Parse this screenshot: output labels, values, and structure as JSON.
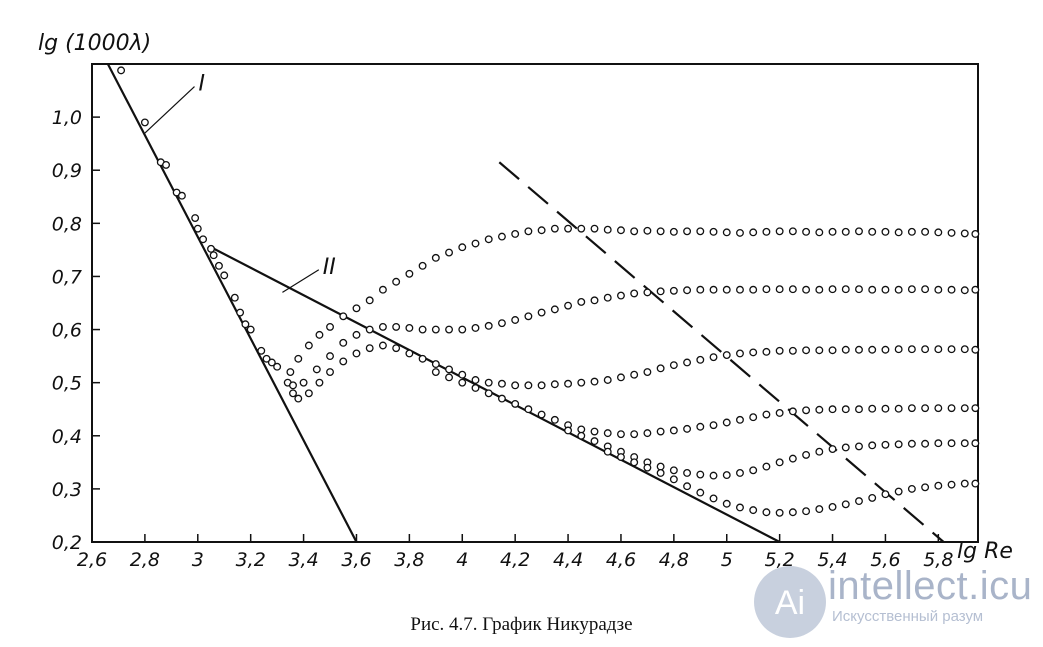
{
  "caption": "Рис. 4.7. График Никурадзе",
  "watermark": {
    "brand": "intellect.icu",
    "tagline": "Искусственный разум",
    "logo_glyph": "Ai",
    "color": "#a9b4c9"
  },
  "chart_data": {
    "type": "scatter",
    "title": "",
    "xlabel": "lg Re",
    "ylabel": "lg (1000λ)",
    "xlim": [
      2.6,
      5.95
    ],
    "ylim": [
      0.2,
      1.1
    ],
    "x_ticks": [
      2.6,
      2.8,
      3,
      3.2,
      3.4,
      3.6,
      3.8,
      4,
      4.2,
      4.4,
      4.6,
      4.8,
      5,
      5.2,
      5.4,
      5.6,
      5.8
    ],
    "x_tick_labels": [
      "2,6",
      "2,8",
      "3",
      "3,2",
      "3,4",
      "3,6",
      "3,8",
      "4",
      "4,2",
      "4,4",
      "4,6",
      "4,8",
      "5",
      "5,2",
      "5,4",
      "5,6",
      "5,8"
    ],
    "y_ticks": [
      0.2,
      0.3,
      0.4,
      0.5,
      0.6,
      0.7,
      0.8,
      0.9,
      1.0
    ],
    "y_tick_labels": [
      "0,2",
      "0,3",
      "0,4",
      "0,5",
      "0,6",
      "0,7",
      "0,8",
      "0,9",
      "1,0"
    ],
    "grid": false,
    "lines": [
      {
        "name": "I",
        "style": "solid",
        "points": [
          [
            2.66,
            1.1
          ],
          [
            3.6,
            0.2
          ]
        ],
        "label_at": [
          2.98,
          1.05
        ]
      },
      {
        "name": "II",
        "style": "solid",
        "points": [
          [
            3.05,
            0.755
          ],
          [
            5.2,
            0.2
          ]
        ],
        "label_at": [
          3.45,
          0.705
        ]
      },
      {
        "name": "",
        "style": "dashed",
        "points": [
          [
            4.14,
            0.915
          ],
          [
            5.82,
            0.2
          ]
        ]
      }
    ],
    "series": [
      {
        "values": [
          [
            2.71,
            1.088
          ],
          [
            2.8,
            0.99
          ],
          [
            2.86,
            0.915
          ],
          [
            2.88,
            0.91
          ],
          [
            2.92,
            0.858
          ],
          [
            2.94,
            0.852
          ],
          [
            2.99,
            0.81
          ],
          [
            3.0,
            0.79
          ],
          [
            3.02,
            0.77
          ],
          [
            3.05,
            0.752
          ],
          [
            3.06,
            0.74
          ],
          [
            3.08,
            0.72
          ],
          [
            3.1,
            0.702
          ],
          [
            3.14,
            0.66
          ],
          [
            3.16,
            0.632
          ],
          [
            3.18,
            0.61
          ],
          [
            3.2,
            0.6
          ],
          [
            3.24,
            0.56
          ],
          [
            3.26,
            0.545
          ],
          [
            3.28,
            0.538
          ],
          [
            3.3,
            0.53
          ],
          [
            3.34,
            0.5
          ],
          [
            3.36,
            0.495
          ]
        ]
      },
      {
        "values": [
          [
            3.35,
            0.52
          ],
          [
            3.38,
            0.545
          ],
          [
            3.42,
            0.57
          ],
          [
            3.46,
            0.59
          ],
          [
            3.5,
            0.605
          ],
          [
            3.55,
            0.625
          ],
          [
            3.6,
            0.64
          ],
          [
            3.65,
            0.655
          ],
          [
            3.7,
            0.675
          ],
          [
            3.75,
            0.69
          ],
          [
            3.8,
            0.705
          ],
          [
            3.85,
            0.72
          ],
          [
            3.9,
            0.735
          ],
          [
            3.95,
            0.745
          ],
          [
            4.0,
            0.755
          ],
          [
            4.05,
            0.762
          ],
          [
            4.1,
            0.77
          ],
          [
            4.15,
            0.775
          ],
          [
            4.2,
            0.78
          ],
          [
            4.25,
            0.785
          ],
          [
            4.3,
            0.787
          ],
          [
            4.35,
            0.79
          ],
          [
            4.4,
            0.79
          ],
          [
            4.45,
            0.79
          ],
          [
            4.5,
            0.79
          ],
          [
            4.55,
            0.788
          ],
          [
            4.6,
            0.787
          ],
          [
            4.65,
            0.785
          ],
          [
            4.7,
            0.786
          ],
          [
            4.75,
            0.785
          ],
          [
            4.8,
            0.784
          ],
          [
            4.85,
            0.785
          ],
          [
            4.9,
            0.785
          ],
          [
            4.95,
            0.784
          ],
          [
            5.0,
            0.783
          ],
          [
            5.05,
            0.782
          ],
          [
            5.1,
            0.783
          ],
          [
            5.15,
            0.784
          ],
          [
            5.2,
            0.785
          ],
          [
            5.25,
            0.785
          ],
          [
            5.3,
            0.784
          ],
          [
            5.35,
            0.783
          ],
          [
            5.4,
            0.784
          ],
          [
            5.45,
            0.784
          ],
          [
            5.5,
            0.785
          ],
          [
            5.55,
            0.784
          ],
          [
            5.6,
            0.784
          ],
          [
            5.65,
            0.783
          ],
          [
            5.7,
            0.784
          ],
          [
            5.75,
            0.784
          ],
          [
            5.8,
            0.783
          ],
          [
            5.85,
            0.782
          ],
          [
            5.9,
            0.781
          ],
          [
            5.94,
            0.78
          ]
        ]
      },
      {
        "values": [
          [
            3.36,
            0.48
          ],
          [
            3.4,
            0.5
          ],
          [
            3.45,
            0.525
          ],
          [
            3.5,
            0.55
          ],
          [
            3.55,
            0.575
          ],
          [
            3.6,
            0.59
          ],
          [
            3.65,
            0.6
          ],
          [
            3.7,
            0.605
          ],
          [
            3.75,
            0.605
          ],
          [
            3.8,
            0.603
          ],
          [
            3.85,
            0.6
          ],
          [
            3.9,
            0.6
          ],
          [
            3.95,
            0.6
          ],
          [
            4.0,
            0.6
          ],
          [
            4.05,
            0.603
          ],
          [
            4.1,
            0.607
          ],
          [
            4.15,
            0.612
          ],
          [
            4.2,
            0.618
          ],
          [
            4.25,
            0.625
          ],
          [
            4.3,
            0.632
          ],
          [
            4.35,
            0.638
          ],
          [
            4.4,
            0.645
          ],
          [
            4.45,
            0.652
          ],
          [
            4.5,
            0.655
          ],
          [
            4.55,
            0.66
          ],
          [
            4.6,
            0.664
          ],
          [
            4.65,
            0.668
          ],
          [
            4.7,
            0.67
          ],
          [
            4.75,
            0.672
          ],
          [
            4.8,
            0.673
          ],
          [
            4.85,
            0.674
          ],
          [
            4.9,
            0.675
          ],
          [
            4.95,
            0.675
          ],
          [
            5.0,
            0.675
          ],
          [
            5.05,
            0.675
          ],
          [
            5.1,
            0.675
          ],
          [
            5.15,
            0.676
          ],
          [
            5.2,
            0.676
          ],
          [
            5.25,
            0.676
          ],
          [
            5.3,
            0.675
          ],
          [
            5.35,
            0.675
          ],
          [
            5.4,
            0.676
          ],
          [
            5.45,
            0.676
          ],
          [
            5.5,
            0.676
          ],
          [
            5.55,
            0.675
          ],
          [
            5.6,
            0.675
          ],
          [
            5.65,
            0.675
          ],
          [
            5.7,
            0.676
          ],
          [
            5.75,
            0.676
          ],
          [
            5.8,
            0.675
          ],
          [
            5.85,
            0.675
          ],
          [
            5.9,
            0.674
          ],
          [
            5.94,
            0.675
          ]
        ]
      },
      {
        "values": [
          [
            3.38,
            0.47
          ],
          [
            3.42,
            0.48
          ],
          [
            3.46,
            0.5
          ],
          [
            3.5,
            0.52
          ],
          [
            3.55,
            0.54
          ],
          [
            3.6,
            0.555
          ],
          [
            3.65,
            0.565
          ],
          [
            3.7,
            0.57
          ],
          [
            3.75,
            0.565
          ],
          [
            3.8,
            0.555
          ],
          [
            3.85,
            0.545
          ],
          [
            3.9,
            0.535
          ],
          [
            3.95,
            0.525
          ],
          [
            4.0,
            0.515
          ],
          [
            4.05,
            0.505
          ],
          [
            4.1,
            0.5
          ],
          [
            4.15,
            0.498
          ],
          [
            4.2,
            0.495
          ],
          [
            4.25,
            0.495
          ],
          [
            4.3,
            0.495
          ],
          [
            4.35,
            0.497
          ],
          [
            4.4,
            0.498
          ],
          [
            4.45,
            0.5
          ],
          [
            4.5,
            0.502
          ],
          [
            4.55,
            0.505
          ],
          [
            4.6,
            0.51
          ],
          [
            4.65,
            0.515
          ],
          [
            4.7,
            0.52
          ],
          [
            4.75,
            0.527
          ],
          [
            4.8,
            0.533
          ],
          [
            4.85,
            0.538
          ],
          [
            4.9,
            0.543
          ],
          [
            4.95,
            0.548
          ],
          [
            5.0,
            0.552
          ],
          [
            5.05,
            0.555
          ],
          [
            5.1,
            0.557
          ],
          [
            5.15,
            0.558
          ],
          [
            5.2,
            0.56
          ],
          [
            5.25,
            0.56
          ],
          [
            5.3,
            0.561
          ],
          [
            5.35,
            0.561
          ],
          [
            5.4,
            0.561
          ],
          [
            5.45,
            0.562
          ],
          [
            5.5,
            0.562
          ],
          [
            5.55,
            0.562
          ],
          [
            5.6,
            0.562
          ],
          [
            5.65,
            0.563
          ],
          [
            5.7,
            0.563
          ],
          [
            5.75,
            0.563
          ],
          [
            5.8,
            0.563
          ],
          [
            5.85,
            0.563
          ],
          [
            5.9,
            0.563
          ],
          [
            5.94,
            0.562
          ]
        ]
      },
      {
        "values": [
          [
            3.9,
            0.52
          ],
          [
            3.95,
            0.51
          ],
          [
            4.0,
            0.5
          ],
          [
            4.05,
            0.49
          ],
          [
            4.1,
            0.48
          ],
          [
            4.15,
            0.47
          ],
          [
            4.2,
            0.46
          ],
          [
            4.25,
            0.45
          ],
          [
            4.3,
            0.44
          ],
          [
            4.35,
            0.43
          ],
          [
            4.4,
            0.42
          ],
          [
            4.45,
            0.412
          ],
          [
            4.5,
            0.408
          ],
          [
            4.55,
            0.405
          ],
          [
            4.6,
            0.403
          ],
          [
            4.65,
            0.403
          ],
          [
            4.7,
            0.405
          ],
          [
            4.75,
            0.408
          ],
          [
            4.8,
            0.41
          ],
          [
            4.85,
            0.413
          ],
          [
            4.9,
            0.417
          ],
          [
            4.95,
            0.42
          ],
          [
            5.0,
            0.425
          ],
          [
            5.05,
            0.43
          ],
          [
            5.1,
            0.435
          ],
          [
            5.15,
            0.44
          ],
          [
            5.2,
            0.443
          ],
          [
            5.25,
            0.446
          ],
          [
            5.3,
            0.448
          ],
          [
            5.35,
            0.449
          ],
          [
            5.4,
            0.45
          ],
          [
            5.45,
            0.45
          ],
          [
            5.5,
            0.45
          ],
          [
            5.55,
            0.451
          ],
          [
            5.6,
            0.451
          ],
          [
            5.65,
            0.451
          ],
          [
            5.7,
            0.452
          ],
          [
            5.75,
            0.452
          ],
          [
            5.8,
            0.452
          ],
          [
            5.85,
            0.452
          ],
          [
            5.9,
            0.452
          ],
          [
            5.94,
            0.452
          ]
        ]
      },
      {
        "values": [
          [
            4.4,
            0.41
          ],
          [
            4.45,
            0.4
          ],
          [
            4.5,
            0.39
          ],
          [
            4.55,
            0.38
          ],
          [
            4.6,
            0.37
          ],
          [
            4.65,
            0.36
          ],
          [
            4.7,
            0.35
          ],
          [
            4.75,
            0.342
          ],
          [
            4.8,
            0.335
          ],
          [
            4.85,
            0.33
          ],
          [
            4.9,
            0.327
          ],
          [
            4.95,
            0.325
          ],
          [
            5.0,
            0.326
          ],
          [
            5.05,
            0.33
          ],
          [
            5.1,
            0.335
          ],
          [
            5.15,
            0.342
          ],
          [
            5.2,
            0.35
          ],
          [
            5.25,
            0.357
          ],
          [
            5.3,
            0.364
          ],
          [
            5.35,
            0.37
          ],
          [
            5.4,
            0.375
          ],
          [
            5.45,
            0.378
          ],
          [
            5.5,
            0.38
          ],
          [
            5.55,
            0.382
          ],
          [
            5.6,
            0.383
          ],
          [
            5.65,
            0.384
          ],
          [
            5.7,
            0.385
          ],
          [
            5.75,
            0.385
          ],
          [
            5.8,
            0.386
          ],
          [
            5.85,
            0.386
          ],
          [
            5.9,
            0.386
          ],
          [
            5.94,
            0.386
          ]
        ]
      },
      {
        "values": [
          [
            4.55,
            0.37
          ],
          [
            4.6,
            0.36
          ],
          [
            4.65,
            0.35
          ],
          [
            4.7,
            0.34
          ],
          [
            4.75,
            0.33
          ],
          [
            4.8,
            0.318
          ],
          [
            4.85,
            0.305
          ],
          [
            4.9,
            0.293
          ],
          [
            4.95,
            0.282
          ],
          [
            5.0,
            0.272
          ],
          [
            5.05,
            0.265
          ],
          [
            5.1,
            0.26
          ],
          [
            5.15,
            0.256
          ],
          [
            5.2,
            0.255
          ],
          [
            5.25,
            0.256
          ],
          [
            5.3,
            0.258
          ],
          [
            5.35,
            0.262
          ],
          [
            5.4,
            0.266
          ],
          [
            5.45,
            0.271
          ],
          [
            5.5,
            0.277
          ],
          [
            5.55,
            0.283
          ],
          [
            5.6,
            0.29
          ],
          [
            5.65,
            0.295
          ],
          [
            5.7,
            0.3
          ],
          [
            5.75,
            0.303
          ],
          [
            5.8,
            0.306
          ],
          [
            5.85,
            0.308
          ],
          [
            5.9,
            0.31
          ],
          [
            5.94,
            0.31
          ]
        ]
      }
    ]
  }
}
